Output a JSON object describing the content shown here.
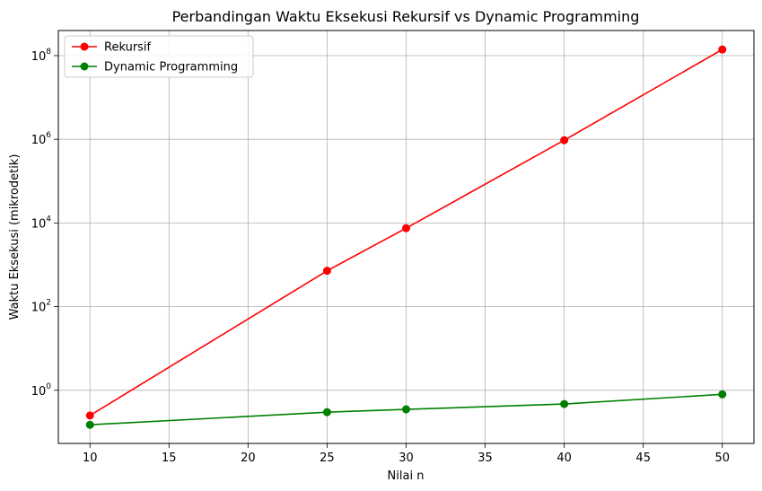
{
  "chart_data": {
    "type": "line",
    "title": "Perbandingan Waktu Eksekusi Rekursif vs Dynamic Programming",
    "xlabel": "Nilai n",
    "ylabel": "Waktu Eksekusi (mikrodetik)",
    "x": [
      10,
      25,
      30,
      40,
      50
    ],
    "xlim": [
      8,
      52
    ],
    "ylim_log10": [
      -1.27,
      8.6
    ],
    "yscale": "log",
    "grid": true,
    "legend_position": "top-left",
    "x_ticks": [
      10,
      15,
      20,
      25,
      30,
      35,
      40,
      45,
      50
    ],
    "y_ticks": [
      {
        "value": 1,
        "base": "10",
        "exp": "0"
      },
      {
        "value": 100,
        "base": "10",
        "exp": "2"
      },
      {
        "value": 10000,
        "base": "10",
        "exp": "4"
      },
      {
        "value": 1000000,
        "base": "10",
        "exp": "6"
      },
      {
        "value": 100000000,
        "base": "10",
        "exp": "8"
      }
    ],
    "series": [
      {
        "name": "Rekursif",
        "color": "#ff0000",
        "values": [
          0.25,
          720,
          7500,
          950000,
          140000000
        ]
      },
      {
        "name": "Dynamic Programming",
        "color": "#008000",
        "values": [
          0.15,
          0.3,
          0.35,
          0.47,
          0.8
        ]
      }
    ]
  }
}
